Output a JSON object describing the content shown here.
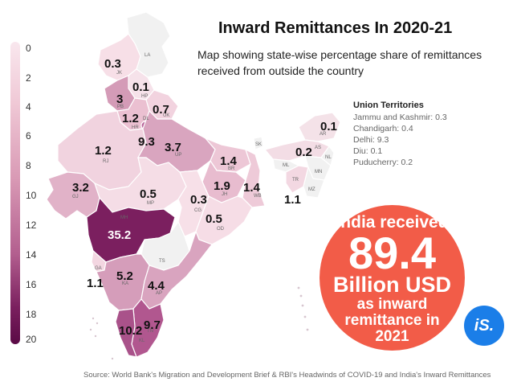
{
  "title": "Inward Remittances In 2020-21",
  "subtitle": "Map showing state-wise percentage share of remittances received from outside the country",
  "legend": {
    "ticks": [
      "0",
      "2",
      "4",
      "6",
      "8",
      "10",
      "12",
      "14",
      "16",
      "18",
      "20"
    ],
    "color_low": "#f9e7ee",
    "color_high": "#5a0a45"
  },
  "states": [
    {
      "abbr": "JK",
      "value": "0.3"
    },
    {
      "abbr": "LA",
      "value": ""
    },
    {
      "abbr": "HP",
      "value": "0.1"
    },
    {
      "abbr": "PB",
      "value": "3"
    },
    {
      "abbr": "UK",
      "value": "0.7"
    },
    {
      "abbr": "HR",
      "value": "1.2"
    },
    {
      "abbr": "DL",
      "value": "9.3"
    },
    {
      "abbr": "UP",
      "value": "3.7"
    },
    {
      "abbr": "RJ",
      "value": "1.2"
    },
    {
      "abbr": "GJ",
      "value": "3.2"
    },
    {
      "abbr": "MP",
      "value": "0.5"
    },
    {
      "abbr": "BR",
      "value": "1.4"
    },
    {
      "abbr": "JH",
      "value": "1.9"
    },
    {
      "abbr": "WB",
      "value": "1.4"
    },
    {
      "abbr": "CG",
      "value": "0.3"
    },
    {
      "abbr": "OD",
      "value": "0.5"
    },
    {
      "abbr": "MH",
      "value": "35.2"
    },
    {
      "abbr": "TS",
      "value": ""
    },
    {
      "abbr": "GA",
      "value": "1.1"
    },
    {
      "abbr": "KA",
      "value": "5.2"
    },
    {
      "abbr": "AP",
      "value": "4.4"
    },
    {
      "abbr": "KL",
      "value": "10.2"
    },
    {
      "abbr": "TN",
      "value": "9.7"
    },
    {
      "abbr": "AR",
      "value": "0.1"
    },
    {
      "abbr": "AS",
      "value": "0.2"
    },
    {
      "abbr": "SK",
      "value": ""
    },
    {
      "abbr": "ML",
      "value": ""
    },
    {
      "abbr": "TR",
      "value": "1.1"
    },
    {
      "abbr": "MN",
      "value": ""
    },
    {
      "abbr": "NL",
      "value": ""
    },
    {
      "abbr": "MZ",
      "value": ""
    }
  ],
  "union_territories": {
    "title": "Union Territories",
    "items": [
      "Jammu and Kashmir: 0.3",
      "Chandigarh: 0.4",
      "Delhi: 9.3",
      "Diu: 0.1",
      "Puducherry: 0.2"
    ]
  },
  "callout": {
    "line1": "India received",
    "amount": "89.4",
    "line3": "Billion USD",
    "line4": "as inward",
    "line5": "remittance in",
    "line6": "2021",
    "color": "#f25c48"
  },
  "logo": {
    "text": "iS.",
    "color": "#1b7ee8"
  },
  "source": "Source: World Bank's Migration and Development Brief  & RBI's Headwinds of COVID-19 and India's Inward Remittances"
}
